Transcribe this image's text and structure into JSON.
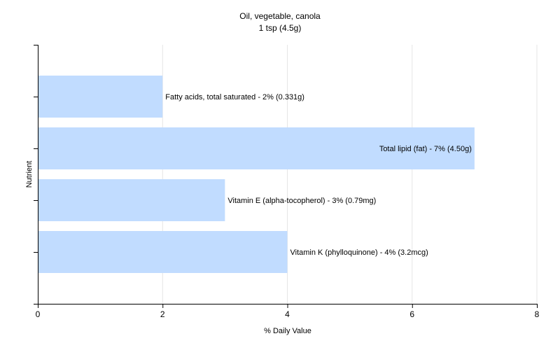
{
  "chart_data": {
    "type": "bar",
    "orientation": "horizontal",
    "title": "Oil, vegetable, canola",
    "subtitle": "1 tsp (4.5g)",
    "xlabel": "% Daily Value",
    "ylabel": "Nutrient",
    "xlim": [
      0,
      8
    ],
    "xticks": [
      0,
      2,
      4,
      6,
      8
    ],
    "grid": true,
    "bar_color": "#c1dcff",
    "categories": [
      "Fatty acids, total saturated",
      "Total lipid (fat)",
      "Vitamin E (alpha-tocopherol)",
      "Vitamin K (phylloquinone)"
    ],
    "values": [
      2,
      7,
      3,
      4
    ],
    "data_labels": [
      "Fatty acids, total saturated - 2% (0.331g)",
      "Total lipid (fat) - 7% (4.50g)",
      "Vitamin E (alpha-tocopherol) - 3% (0.79mg)",
      "Vitamin K (phylloquinone) - 4% (3.2mcg)"
    ]
  }
}
